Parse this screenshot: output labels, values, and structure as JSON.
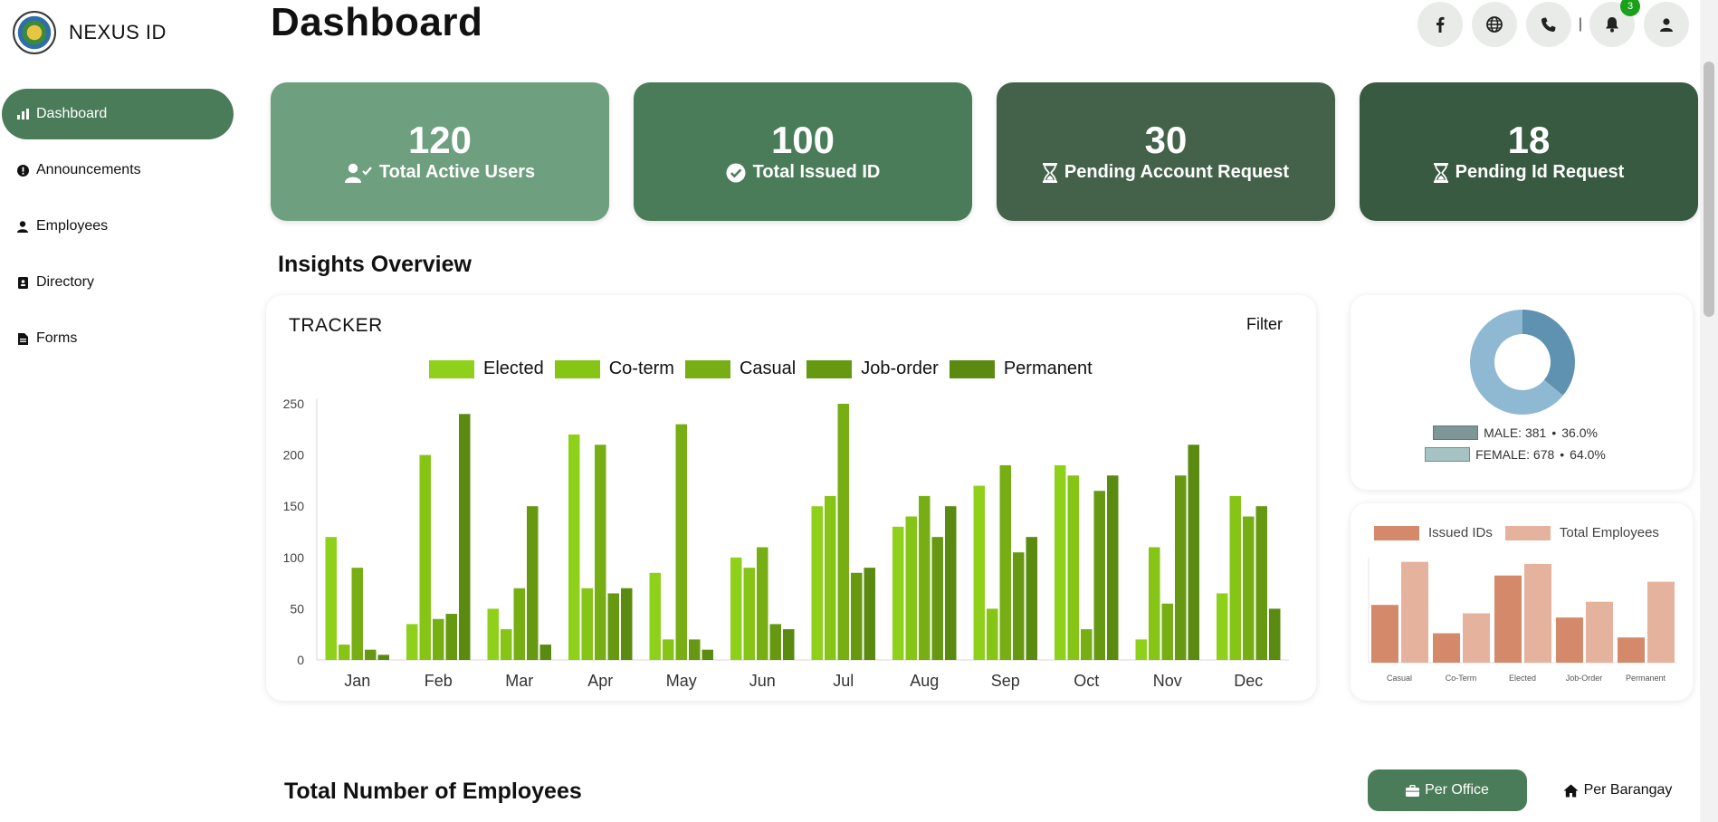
{
  "app": {
    "name": "NEXUS ID"
  },
  "sidebar": {
    "items": [
      {
        "label": "Dashboard",
        "icon": "bar-chart-icon",
        "active": true
      },
      {
        "label": "Announcements",
        "icon": "exclamation-icon",
        "active": false
      },
      {
        "label": "Employees",
        "icon": "person-icon",
        "active": false
      },
      {
        "label": "Directory",
        "icon": "address-book-icon",
        "active": false
      },
      {
        "label": "Forms",
        "icon": "file-icon",
        "active": false
      }
    ]
  },
  "header": {
    "title": "Dashboard",
    "separator": "|",
    "actions": [
      "facebook-icon",
      "globe-icon",
      "phone-icon",
      "bell-icon",
      "user-icon"
    ],
    "notification_count": "3"
  },
  "stats": [
    {
      "value": "120",
      "label": "Total Active Users",
      "icon": "user-check-icon",
      "color": "#6e9f7e"
    },
    {
      "value": "100",
      "label": "Total Issued ID",
      "icon": "check-circle-icon",
      "color": "#4a7c59"
    },
    {
      "value": "30",
      "label": "Pending Account Request",
      "icon": "hourglass-icon",
      "color": "#44624a"
    },
    {
      "value": "18",
      "label": "Pending Id Request",
      "icon": "hourglass-icon",
      "color": "#385a40"
    }
  ],
  "insights": {
    "title": "Insights Overview"
  },
  "tracker": {
    "title": "TRACKER",
    "filter_label": "Filter"
  },
  "gender": {
    "title": "",
    "male_label": "MALE: 381",
    "male_pct": "36.0%",
    "female_label": "FEMALE: 678",
    "female_pct": "64.0%",
    "bullet": "•"
  },
  "employees": {
    "title": "Total Number of Employees",
    "tab_office": "Per Office",
    "tab_barangay": "Per Barangay"
  },
  "chart_data": [
    {
      "type": "bar",
      "title": "TRACKER",
      "categories": [
        "Jan",
        "Feb",
        "Mar",
        "Apr",
        "May",
        "Jun",
        "Jul",
        "Aug",
        "Sep",
        "Oct",
        "Nov",
        "Dec"
      ],
      "ylim": [
        0,
        250
      ],
      "yticks": [
        0,
        50,
        100,
        150,
        200,
        250
      ],
      "legend": "top",
      "series": [
        {
          "name": "Elected",
          "color": "#8fd11a",
          "values": [
            120,
            35,
            50,
            220,
            85,
            100,
            150,
            130,
            170,
            190,
            20,
            65
          ]
        },
        {
          "name": "Co-term",
          "color": "#86c415",
          "values": [
            15,
            200,
            30,
            70,
            20,
            90,
            160,
            140,
            50,
            180,
            110,
            160
          ]
        },
        {
          "name": "Casual",
          "color": "#77ae14",
          "values": [
            90,
            40,
            70,
            210,
            230,
            110,
            250,
            160,
            190,
            30,
            55,
            140
          ]
        },
        {
          "name": "Job-order",
          "color": "#669911",
          "values": [
            10,
            45,
            150,
            65,
            20,
            35,
            85,
            120,
            105,
            165,
            180,
            150
          ]
        },
        {
          "name": "Permanent",
          "color": "#5a8a0f",
          "values": [
            5,
            240,
            15,
            70,
            10,
            30,
            90,
            150,
            120,
            180,
            210,
            50
          ]
        }
      ]
    },
    {
      "type": "pie",
      "legend": "bottom",
      "slices": [
        {
          "name": "MALE",
          "value": 381,
          "percent": 36.0,
          "color": "#5f92b0"
        },
        {
          "name": "FEMALE",
          "value": 678,
          "percent": 64.0,
          "color": "#8fb8d2"
        }
      ]
    },
    {
      "type": "bar",
      "categories": [
        "Casual",
        "Co-Term",
        "Elected",
        "Job-Order",
        "Permanent"
      ],
      "legend": "top",
      "series": [
        {
          "name": "Issued IDs",
          "color": "#d4896b",
          "values": [
            55,
            28,
            83,
            43,
            24
          ]
        },
        {
          "name": "Total Employees",
          "color": "#e5b39d",
          "values": [
            96,
            47,
            94,
            58,
            77
          ]
        }
      ]
    }
  ]
}
